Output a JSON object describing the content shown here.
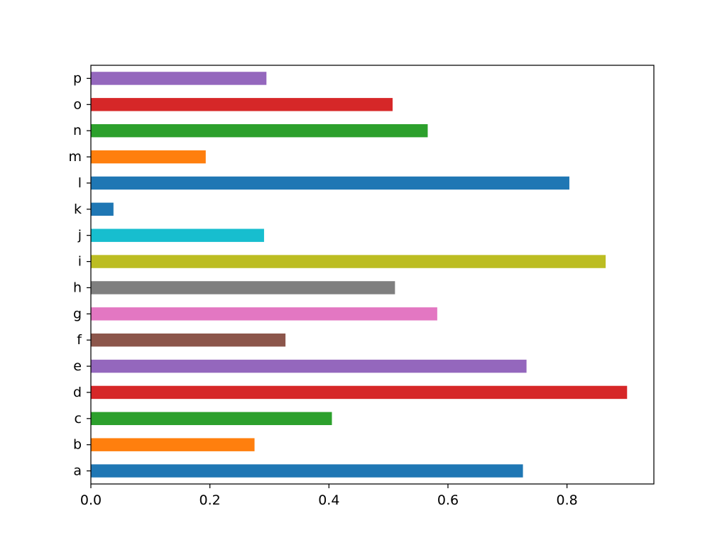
{
  "chart_data": {
    "type": "bar",
    "orientation": "horizontal",
    "title": "",
    "xlabel": "",
    "ylabel": "",
    "categories": [
      "a",
      "b",
      "c",
      "d",
      "e",
      "f",
      "g",
      "h",
      "i",
      "j",
      "k",
      "l",
      "m",
      "n",
      "o",
      "p"
    ],
    "values": [
      0.726,
      0.275,
      0.405,
      0.901,
      0.732,
      0.327,
      0.582,
      0.511,
      0.865,
      0.291,
      0.038,
      0.804,
      0.193,
      0.566,
      0.507,
      0.295
    ],
    "colors": [
      "#1f77b4",
      "#ff7f0e",
      "#2ca02c",
      "#d62728",
      "#9467bd",
      "#8c564b",
      "#e377c2",
      "#7f7f7f",
      "#bcbd22",
      "#17becf",
      "#1f77b4",
      "#1f77b4",
      "#ff7f0e",
      "#2ca02c",
      "#d62728",
      "#9467bd"
    ],
    "xlim": [
      0,
      0.946
    ],
    "xticks": [
      0.0,
      0.2,
      0.4,
      0.6,
      0.8
    ],
    "xtick_labels": [
      "0.0",
      "0.2",
      "0.4",
      "0.6",
      "0.8"
    ],
    "grid": false,
    "legend": "none"
  }
}
